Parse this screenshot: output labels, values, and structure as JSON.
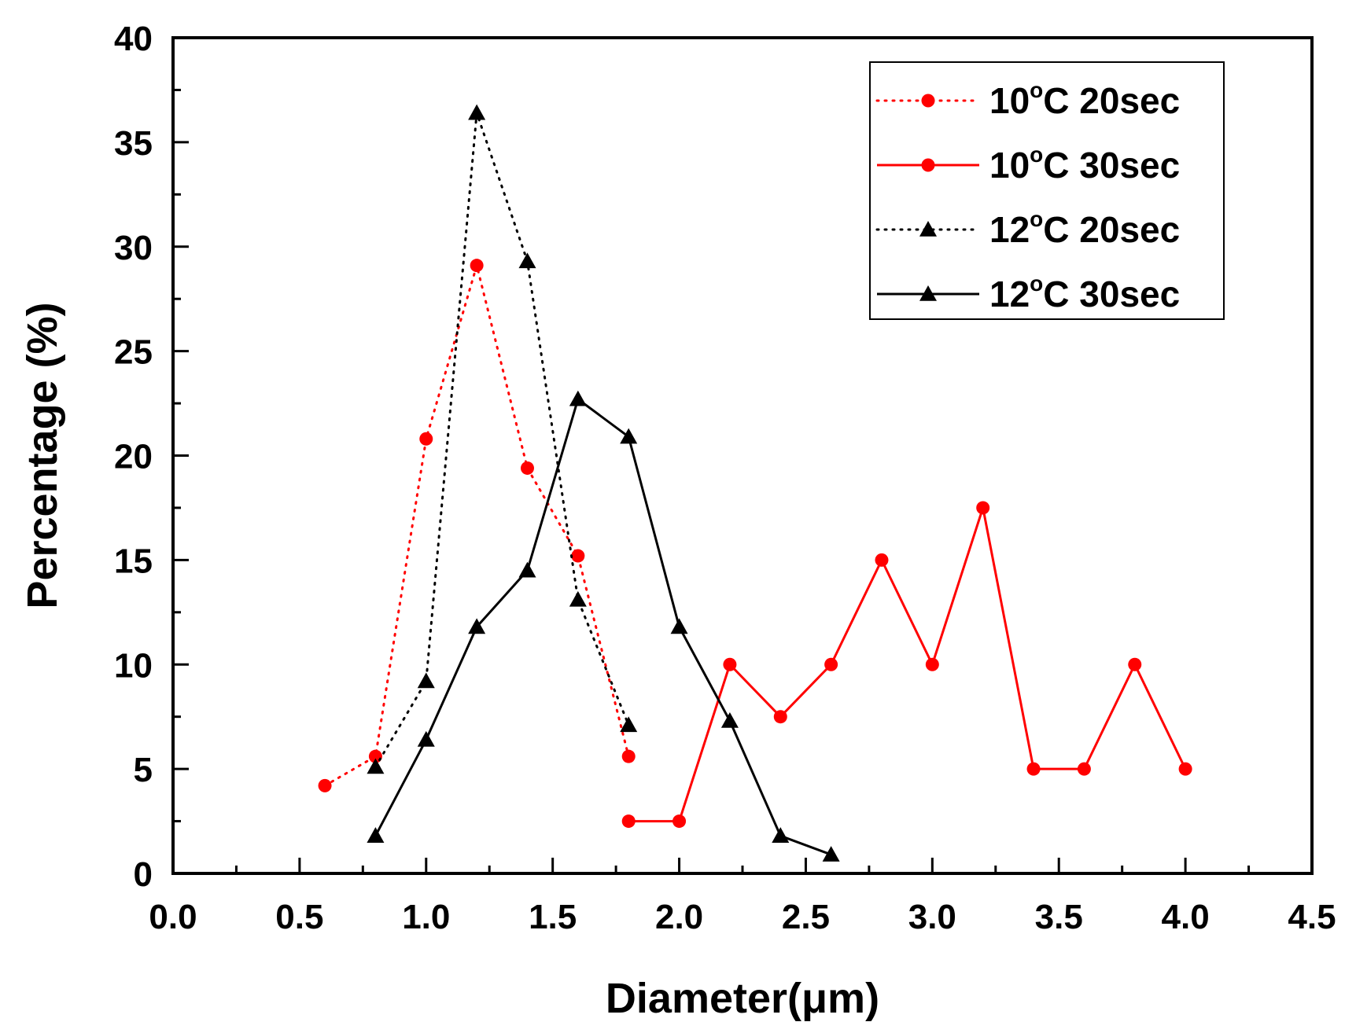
{
  "chart_data": {
    "type": "line",
    "title": "",
    "xlabel": "Diameter(μm)",
    "ylabel": "Percentage (%)",
    "xlim": [
      0.0,
      4.5
    ],
    "ylim": [
      0,
      40
    ],
    "xticks": [
      "0.0",
      "0.5",
      "1.0",
      "1.5",
      "2.0",
      "2.5",
      "3.0",
      "3.5",
      "4.0",
      "4.5"
    ],
    "yticks": [
      "0",
      "5",
      "10",
      "15",
      "20",
      "25",
      "30",
      "35",
      "40"
    ],
    "legend_position": "top-right",
    "series": [
      {
        "name": "10°C 20sec",
        "legend_prefix": "10",
        "legend_sup": "o",
        "legend_suffix": "C 20sec",
        "color": "#ff0000",
        "line_style": "dotted",
        "marker": "circle",
        "x": [
          0.6,
          0.8,
          1.0,
          1.2,
          1.4,
          1.6,
          1.8
        ],
        "y": [
          4.2,
          5.6,
          20.8,
          29.1,
          19.4,
          15.2,
          5.6
        ]
      },
      {
        "name": "10°C 30sec",
        "legend_prefix": "10",
        "legend_sup": "o",
        "legend_suffix": "C 30sec",
        "color": "#ff0000",
        "line_style": "solid",
        "marker": "circle",
        "x": [
          1.8,
          2.0,
          2.2,
          2.4,
          2.6,
          2.8,
          3.0,
          3.2,
          3.4,
          3.6,
          3.8,
          4.0
        ],
        "y": [
          2.5,
          2.5,
          10.0,
          7.5,
          10.0,
          15.0,
          10.0,
          17.5,
          5.0,
          5.0,
          10.0,
          5.0
        ]
      },
      {
        "name": "12°C 20sec",
        "legend_prefix": "12",
        "legend_sup": "o",
        "legend_suffix": "C 20sec",
        "color": "#000000",
        "line_style": "dotted",
        "marker": "triangle",
        "x": [
          0.8,
          1.0,
          1.2,
          1.4,
          1.6,
          1.8
        ],
        "y": [
          5.1,
          9.2,
          36.4,
          29.3,
          13.1,
          7.1
        ]
      },
      {
        "name": "12°C 30sec",
        "legend_prefix": "12",
        "legend_sup": "o",
        "legend_suffix": "C 30sec",
        "color": "#000000",
        "line_style": "solid",
        "marker": "triangle",
        "x": [
          0.8,
          1.0,
          1.2,
          1.4,
          1.6,
          1.8,
          2.0,
          2.2,
          2.4,
          2.6
        ],
        "y": [
          1.8,
          6.4,
          11.8,
          14.5,
          22.7,
          20.9,
          11.8,
          7.3,
          1.8,
          0.9
        ]
      }
    ]
  }
}
